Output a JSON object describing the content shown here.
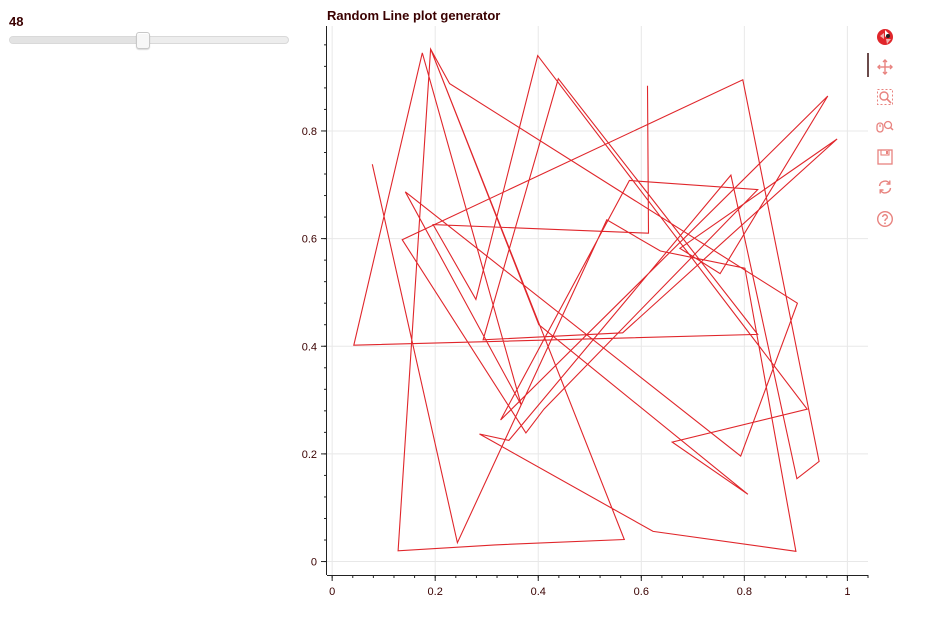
{
  "slider": {
    "value": "48",
    "min": 1,
    "max": 100,
    "position": 48
  },
  "colors": {
    "line": "#e0262b",
    "text": "#3a0000",
    "axis": "#222222",
    "grid": "#e8e8e8",
    "toolbar_icon": "#e8837f"
  },
  "toolbar": {
    "tools": [
      "bokeh-logo-icon",
      "pan-icon",
      "box-zoom-icon",
      "wheel-zoom-icon",
      "save-icon",
      "reset-icon",
      "help-icon"
    ]
  },
  "chart_data": {
    "type": "line",
    "title": "Random Line plot generator",
    "xlabel": "",
    "ylabel": "",
    "xlim": [
      -0.01,
      1.04
    ],
    "ylim": [
      -0.025,
      0.995
    ],
    "grid": true,
    "x_ticks": [
      "0",
      "0.2",
      "0.4",
      "0.6",
      "0.8",
      "1"
    ],
    "x_tick_values": [
      0,
      0.2,
      0.4,
      0.6,
      0.8,
      1.0
    ],
    "y_ticks": [
      "0",
      "0.2",
      "0.4",
      "0.6",
      "0.8"
    ],
    "y_tick_values": [
      0,
      0.2,
      0.4,
      0.6,
      0.8
    ],
    "series": [
      {
        "name": "random line",
        "x": [
          0.078,
          0.243,
          0.533,
          0.637,
          0.801,
          0.9,
          0.623,
          0.286,
          0.343,
          0.774,
          0.902,
          0.945,
          0.797,
          0.136,
          0.376,
          0.411,
          0.826,
          0.577,
          0.327,
          0.962,
          0.753,
          0.675,
          0.98,
          0.564,
          0.293,
          0.439,
          0.826,
          0.042,
          0.175,
          0.367,
          0.142,
          0.793,
          0.903,
          0.228,
          0.191,
          0.128,
          0.316,
          0.567,
          0.192,
          0.401,
          0.807,
          0.66,
          0.922,
          0.399,
          0.279,
          0.196,
          0.614,
          0.612
        ],
        "y": [
          0.738,
          0.035,
          0.635,
          0.577,
          0.545,
          0.019,
          0.056,
          0.237,
          0.225,
          0.718,
          0.154,
          0.186,
          0.895,
          0.598,
          0.239,
          0.283,
          0.691,
          0.708,
          0.263,
          0.865,
          0.535,
          0.582,
          0.785,
          0.425,
          0.412,
          0.897,
          0.422,
          0.402,
          0.945,
          0.291,
          0.687,
          0.196,
          0.48,
          0.888,
          0.952,
          0.02,
          0.031,
          0.041,
          0.95,
          0.44,
          0.125,
          0.222,
          0.283,
          0.94,
          0.487,
          0.626,
          0.61,
          0.884
        ]
      }
    ]
  }
}
